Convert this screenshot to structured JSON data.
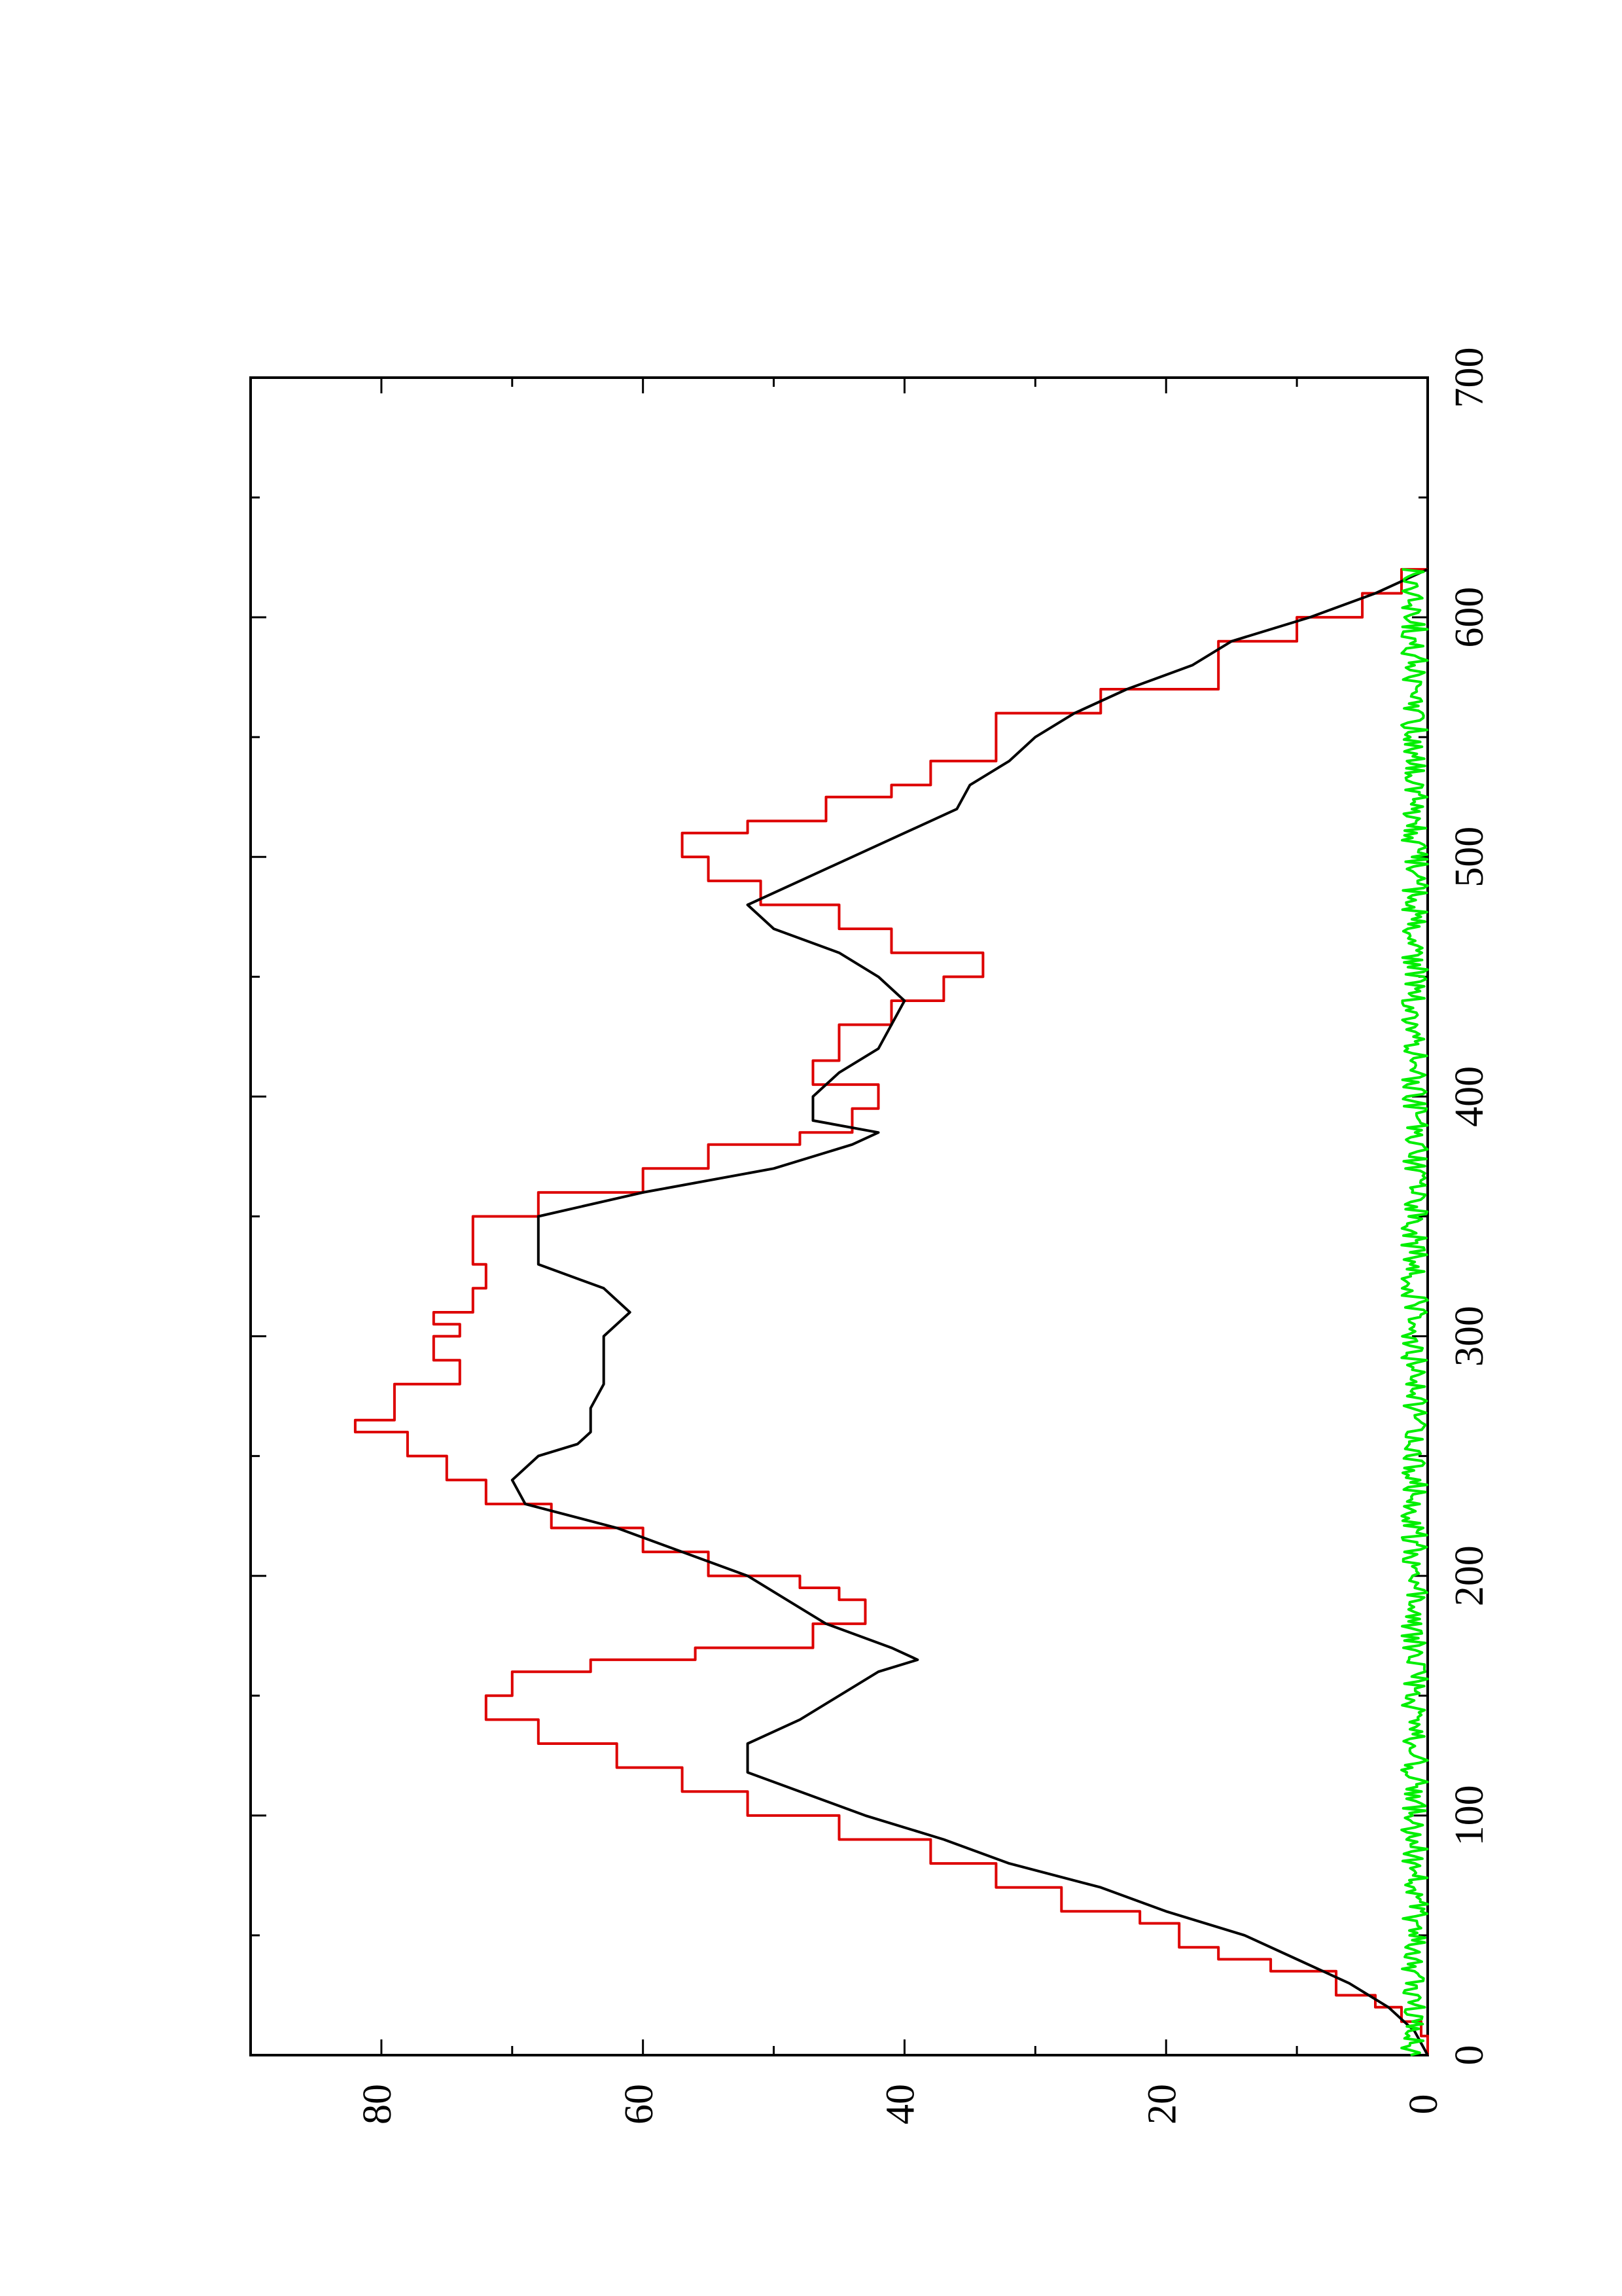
{
  "chart_data": {
    "type": "line",
    "orientation": "rotated-90-counterclockwise",
    "title": "",
    "xlabel": "",
    "ylabel": "",
    "xlim": [
      0,
      700
    ],
    "ylim": [
      0,
      90
    ],
    "x_ticks": [
      0,
      100,
      200,
      300,
      400,
      500,
      600,
      700
    ],
    "x_minor_ticks": [
      50,
      150,
      250,
      350,
      450,
      550,
      650
    ],
    "y_ticks": [
      0,
      20,
      40,
      60,
      80
    ],
    "y_minor_ticks": [
      10,
      30,
      50,
      70
    ],
    "x_tick_labels": [
      "0",
      "100",
      "200",
      "300",
      "400",
      "500",
      "600",
      "700"
    ],
    "y_tick_labels": [
      "0",
      "20",
      "40",
      "60",
      "80"
    ],
    "grid": false,
    "legend": "none",
    "series": [
      {
        "color": "#dd0000",
        "style": "step",
        "x": [
          0,
          8,
          14,
          20,
          25,
          35,
          40,
          45,
          55,
          60,
          70,
          80,
          90,
          100,
          110,
          120,
          130,
          140,
          150,
          160,
          165,
          170,
          180,
          190,
          195,
          200,
          210,
          220,
          230,
          240,
          250,
          260,
          265,
          280,
          290,
          300,
          305,
          310,
          320,
          330,
          340,
          350,
          360,
          370,
          380,
          385,
          395,
          405,
          415,
          430,
          440,
          450,
          460,
          470,
          480,
          490,
          500,
          510,
          515,
          525,
          530,
          540,
          560,
          570,
          590,
          600,
          610,
          620
        ],
        "y": [
          0,
          0.5,
          2,
          4,
          7,
          12,
          16,
          19,
          22,
          28,
          33,
          38,
          45,
          52,
          57,
          62,
          68,
          72,
          70,
          64,
          56,
          47,
          43,
          45,
          48,
          55,
          60,
          67,
          72,
          75,
          78,
          82,
          79,
          74,
          76,
          74,
          76,
          73,
          72,
          73,
          73,
          68,
          60,
          55,
          48,
          44,
          42,
          47,
          45,
          41,
          37,
          34,
          41,
          45,
          51,
          55,
          57,
          52,
          46,
          41,
          38,
          33,
          25,
          16,
          10,
          5,
          2,
          0
        ]
      },
      {
        "color": "#000000",
        "style": "line",
        "x": [
          0,
          10,
          20,
          30,
          40,
          50,
          60,
          70,
          80,
          90,
          100,
          110,
          118,
          130,
          140,
          150,
          160,
          165,
          170,
          180,
          190,
          200,
          210,
          220,
          230,
          240,
          250,
          255,
          260,
          270,
          280,
          290,
          300,
          310,
          320,
          330,
          340,
          350,
          360,
          370,
          380,
          385,
          390,
          400,
          410,
          420,
          430,
          440,
          450,
          460,
          470,
          480,
          490,
          500,
          510,
          520,
          530,
          540,
          550,
          560,
          570,
          580,
          590,
          600,
          610,
          620
        ],
        "y": [
          0,
          1,
          3,
          6,
          10,
          14,
          20,
          25,
          32,
          37,
          43,
          48,
          52,
          52,
          48,
          45,
          42,
          39,
          41,
          46,
          49,
          52,
          57,
          62,
          69,
          70,
          68,
          65,
          64,
          64,
          63,
          63,
          63,
          61,
          63,
          68,
          68,
          68,
          60,
          50,
          44,
          42,
          47,
          47,
          45,
          42,
          41,
          40,
          42,
          45,
          50,
          52,
          48,
          44,
          40,
          36,
          35,
          32,
          30,
          27,
          23,
          18,
          15,
          9,
          4,
          0
        ]
      },
      {
        "color": "#00ee00",
        "style": "noise",
        "x_range": [
          0,
          620
        ],
        "y_range": [
          0,
          2
        ]
      }
    ]
  }
}
